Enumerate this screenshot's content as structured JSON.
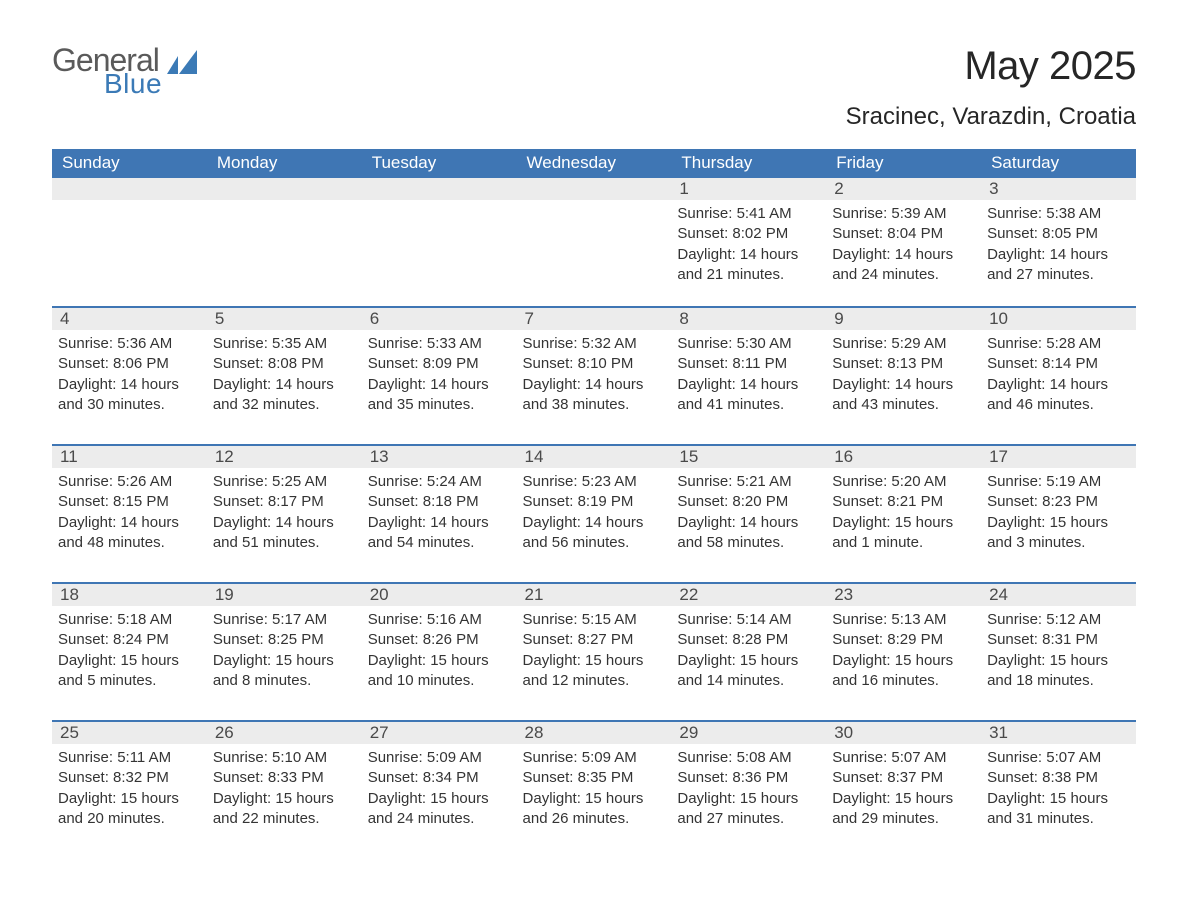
{
  "logo": {
    "text1": "General",
    "text2": "Blue",
    "color1": "#5a5a5a",
    "color2": "#3b7ab6"
  },
  "title": "May 2025",
  "location": "Sracinec, Varazdin, Croatia",
  "theme": {
    "header_bg": "#3f76b4",
    "header_text": "#ffffff",
    "daybar_bg": "#ececec",
    "daybar_border": "#3f76b4",
    "body_text": "#343434",
    "page_bg": "#ffffff",
    "font": "Segoe UI",
    "title_fontsize": 40,
    "location_fontsize": 24,
    "header_fontsize": 17,
    "daynum_fontsize": 17,
    "info_fontsize": 15
  },
  "columns": [
    "Sunday",
    "Monday",
    "Tuesday",
    "Wednesday",
    "Thursday",
    "Friday",
    "Saturday"
  ],
  "weeks": [
    [
      null,
      null,
      null,
      null,
      {
        "d": "1",
        "sr": "Sunrise: 5:41 AM",
        "ss": "Sunset: 8:02 PM",
        "dl1": "Daylight: 14 hours",
        "dl2": "and 21 minutes."
      },
      {
        "d": "2",
        "sr": "Sunrise: 5:39 AM",
        "ss": "Sunset: 8:04 PM",
        "dl1": "Daylight: 14 hours",
        "dl2": "and 24 minutes."
      },
      {
        "d": "3",
        "sr": "Sunrise: 5:38 AM",
        "ss": "Sunset: 8:05 PM",
        "dl1": "Daylight: 14 hours",
        "dl2": "and 27 minutes."
      }
    ],
    [
      {
        "d": "4",
        "sr": "Sunrise: 5:36 AM",
        "ss": "Sunset: 8:06 PM",
        "dl1": "Daylight: 14 hours",
        "dl2": "and 30 minutes."
      },
      {
        "d": "5",
        "sr": "Sunrise: 5:35 AM",
        "ss": "Sunset: 8:08 PM",
        "dl1": "Daylight: 14 hours",
        "dl2": "and 32 minutes."
      },
      {
        "d": "6",
        "sr": "Sunrise: 5:33 AM",
        "ss": "Sunset: 8:09 PM",
        "dl1": "Daylight: 14 hours",
        "dl2": "and 35 minutes."
      },
      {
        "d": "7",
        "sr": "Sunrise: 5:32 AM",
        "ss": "Sunset: 8:10 PM",
        "dl1": "Daylight: 14 hours",
        "dl2": "and 38 minutes."
      },
      {
        "d": "8",
        "sr": "Sunrise: 5:30 AM",
        "ss": "Sunset: 8:11 PM",
        "dl1": "Daylight: 14 hours",
        "dl2": "and 41 minutes."
      },
      {
        "d": "9",
        "sr": "Sunrise: 5:29 AM",
        "ss": "Sunset: 8:13 PM",
        "dl1": "Daylight: 14 hours",
        "dl2": "and 43 minutes."
      },
      {
        "d": "10",
        "sr": "Sunrise: 5:28 AM",
        "ss": "Sunset: 8:14 PM",
        "dl1": "Daylight: 14 hours",
        "dl2": "and 46 minutes."
      }
    ],
    [
      {
        "d": "11",
        "sr": "Sunrise: 5:26 AM",
        "ss": "Sunset: 8:15 PM",
        "dl1": "Daylight: 14 hours",
        "dl2": "and 48 minutes."
      },
      {
        "d": "12",
        "sr": "Sunrise: 5:25 AM",
        "ss": "Sunset: 8:17 PM",
        "dl1": "Daylight: 14 hours",
        "dl2": "and 51 minutes."
      },
      {
        "d": "13",
        "sr": "Sunrise: 5:24 AM",
        "ss": "Sunset: 8:18 PM",
        "dl1": "Daylight: 14 hours",
        "dl2": "and 54 minutes."
      },
      {
        "d": "14",
        "sr": "Sunrise: 5:23 AM",
        "ss": "Sunset: 8:19 PM",
        "dl1": "Daylight: 14 hours",
        "dl2": "and 56 minutes."
      },
      {
        "d": "15",
        "sr": "Sunrise: 5:21 AM",
        "ss": "Sunset: 8:20 PM",
        "dl1": "Daylight: 14 hours",
        "dl2": "and 58 minutes."
      },
      {
        "d": "16",
        "sr": "Sunrise: 5:20 AM",
        "ss": "Sunset: 8:21 PM",
        "dl1": "Daylight: 15 hours",
        "dl2": "and 1 minute."
      },
      {
        "d": "17",
        "sr": "Sunrise: 5:19 AM",
        "ss": "Sunset: 8:23 PM",
        "dl1": "Daylight: 15 hours",
        "dl2": "and 3 minutes."
      }
    ],
    [
      {
        "d": "18",
        "sr": "Sunrise: 5:18 AM",
        "ss": "Sunset: 8:24 PM",
        "dl1": "Daylight: 15 hours",
        "dl2": "and 5 minutes."
      },
      {
        "d": "19",
        "sr": "Sunrise: 5:17 AM",
        "ss": "Sunset: 8:25 PM",
        "dl1": "Daylight: 15 hours",
        "dl2": "and 8 minutes."
      },
      {
        "d": "20",
        "sr": "Sunrise: 5:16 AM",
        "ss": "Sunset: 8:26 PM",
        "dl1": "Daylight: 15 hours",
        "dl2": "and 10 minutes."
      },
      {
        "d": "21",
        "sr": "Sunrise: 5:15 AM",
        "ss": "Sunset: 8:27 PM",
        "dl1": "Daylight: 15 hours",
        "dl2": "and 12 minutes."
      },
      {
        "d": "22",
        "sr": "Sunrise: 5:14 AM",
        "ss": "Sunset: 8:28 PM",
        "dl1": "Daylight: 15 hours",
        "dl2": "and 14 minutes."
      },
      {
        "d": "23",
        "sr": "Sunrise: 5:13 AM",
        "ss": "Sunset: 8:29 PM",
        "dl1": "Daylight: 15 hours",
        "dl2": "and 16 minutes."
      },
      {
        "d": "24",
        "sr": "Sunrise: 5:12 AM",
        "ss": "Sunset: 8:31 PM",
        "dl1": "Daylight: 15 hours",
        "dl2": "and 18 minutes."
      }
    ],
    [
      {
        "d": "25",
        "sr": "Sunrise: 5:11 AM",
        "ss": "Sunset: 8:32 PM",
        "dl1": "Daylight: 15 hours",
        "dl2": "and 20 minutes."
      },
      {
        "d": "26",
        "sr": "Sunrise: 5:10 AM",
        "ss": "Sunset: 8:33 PM",
        "dl1": "Daylight: 15 hours",
        "dl2": "and 22 minutes."
      },
      {
        "d": "27",
        "sr": "Sunrise: 5:09 AM",
        "ss": "Sunset: 8:34 PM",
        "dl1": "Daylight: 15 hours",
        "dl2": "and 24 minutes."
      },
      {
        "d": "28",
        "sr": "Sunrise: 5:09 AM",
        "ss": "Sunset: 8:35 PM",
        "dl1": "Daylight: 15 hours",
        "dl2": "and 26 minutes."
      },
      {
        "d": "29",
        "sr": "Sunrise: 5:08 AM",
        "ss": "Sunset: 8:36 PM",
        "dl1": "Daylight: 15 hours",
        "dl2": "and 27 minutes."
      },
      {
        "d": "30",
        "sr": "Sunrise: 5:07 AM",
        "ss": "Sunset: 8:37 PM",
        "dl1": "Daylight: 15 hours",
        "dl2": "and 29 minutes."
      },
      {
        "d": "31",
        "sr": "Sunrise: 5:07 AM",
        "ss": "Sunset: 8:38 PM",
        "dl1": "Daylight: 15 hours",
        "dl2": "and 31 minutes."
      }
    ]
  ]
}
